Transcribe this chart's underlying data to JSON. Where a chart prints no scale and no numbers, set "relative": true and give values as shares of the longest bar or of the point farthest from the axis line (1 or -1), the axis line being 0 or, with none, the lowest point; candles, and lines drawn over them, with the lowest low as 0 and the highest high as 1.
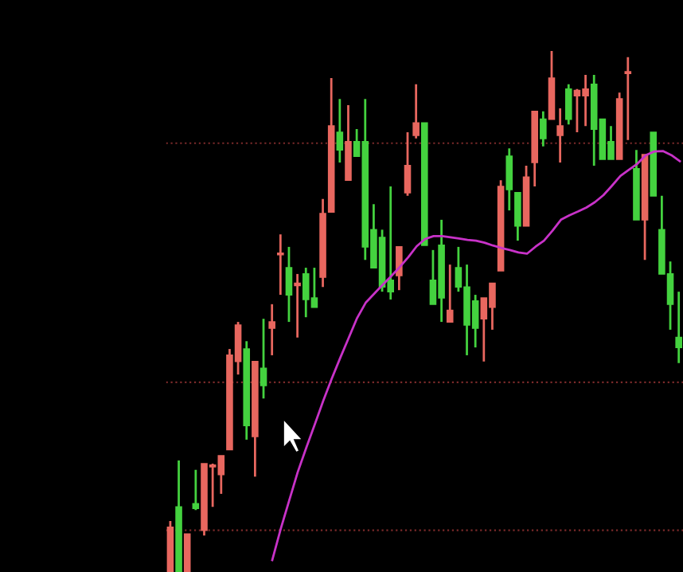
{
  "chart_data": [
    {
      "type": "candlestick",
      "relative": true,
      "categories": [
        null,
        null,
        null,
        null,
        null,
        null,
        null,
        null,
        null,
        null,
        null,
        null,
        null,
        null,
        null,
        null,
        null,
        null,
        null,
        null,
        null,
        null,
        null,
        null,
        null,
        null,
        null,
        null,
        null,
        null,
        null,
        null,
        null,
        null,
        null,
        null,
        null,
        null,
        null,
        null,
        null,
        null,
        null,
        null,
        null,
        null,
        null,
        null,
        null,
        null,
        null,
        null,
        null,
        null,
        null,
        null,
        null,
        null,
        null,
        null,
        null
      ],
      "ohlc": [
        [
          0,
          0.098,
          0,
          0.086
        ],
        [
          0.125,
          0.214,
          0,
          0
        ],
        [
          0,
          0.073,
          0,
          0.073
        ],
        [
          0.131,
          0.196,
          0.119,
          0.122
        ],
        [
          0.08,
          0.208,
          0.07,
          0.208
        ],
        [
          0.202,
          0.208,
          0.125,
          0.205
        ],
        [
          0.187,
          0.223,
          0.15,
          0.223
        ],
        [
          0.235,
          0.428,
          0.235,
          0.416
        ],
        [
          0.404,
          0.48,
          0.379,
          0.474
        ],
        [
          0.428,
          0.443,
          0.254,
          0.281
        ],
        [
          0.26,
          0.404,
          0.183,
          0.404
        ],
        [
          0.391,
          0.486,
          0.333,
          0.358
        ],
        [
          0.468,
          0.514,
          0.416,
          0.48
        ],
        [
          0.609,
          0.648,
          0.532,
          0.612
        ],
        [
          0.584,
          0.624,
          0.48,
          0.532
        ],
        [
          0.55,
          0.572,
          0.45,
          0.554
        ],
        [
          0.572,
          0.584,
          0.489,
          0.523
        ],
        [
          0.526,
          0.584,
          0.508,
          0.508
        ],
        [
          0.566,
          0.716,
          0.547,
          0.688
        ],
        [
          0.691,
          0.948,
          0.691,
          0.856
        ],
        [
          0.844,
          0.908,
          0.786,
          0.81
        ],
        [
          0.752,
          0.896,
          0.752,
          0.826
        ],
        [
          0.826,
          0.85,
          0.798,
          0.798
        ],
        [
          0.826,
          0.908,
          0.599,
          0.624
        ],
        [
          0.657,
          0.706,
          0.584,
          0.584
        ],
        [
          0.642,
          0.657,
          0.538,
          0.547
        ],
        [
          0.56,
          0.74,
          0.523,
          0.538
        ],
        [
          0.569,
          0.624,
          0.541,
          0.624
        ],
        [
          0.728,
          0.844,
          0.722,
          0.78
        ],
        [
          0.838,
          0.936,
          0.832,
          0.862
        ],
        [
          0.862,
          0.862,
          0.627,
          0.627
        ],
        [
          0.56,
          0.618,
          0.514,
          0.514
        ],
        [
          0.627,
          0.676,
          0.48,
          0.526
        ],
        [
          0.48,
          0.59,
          0.48,
          0.502
        ],
        [
          0.584,
          0.624,
          0.538,
          0.547
        ],
        [
          0.547,
          0.59,
          0.416,
          0.474
        ],
        [
          0.52,
          0.532,
          0.431,
          0.468
        ],
        [
          0.486,
          0.526,
          0.404,
          0.526
        ],
        [
          0.508,
          0.554,
          0.465,
          0.554
        ],
        [
          0.578,
          0.752,
          0.578,
          0.74
        ],
        [
          0.798,
          0.813,
          0.694,
          0.734
        ],
        [
          0.728,
          0.728,
          0.636,
          0.664
        ],
        [
          0.664,
          0.78,
          0.664,
          0.758
        ],
        [
          0.786,
          0.884,
          0.74,
          0.884
        ],
        [
          0.869,
          0.884,
          0.817,
          0.832
        ],
        [
          0.869,
          1,
          0.869,
          0.948
        ],
        [
          0.838,
          0.89,
          0.786,
          0.856
        ],
        [
          0.927,
          0.936,
          0.859,
          0.869
        ],
        [
          0.914,
          0.927,
          0.844,
          0.924
        ],
        [
          0.914,
          0.954,
          0.856,
          0.927
        ],
        [
          0.936,
          0.954,
          0.78,
          0.85
        ],
        [
          0.869,
          0.869,
          0.792,
          0.792
        ],
        [
          0.826,
          0.856,
          0.792,
          0.792
        ],
        [
          0.792,
          0.92,
          0.792,
          0.908
        ],
        [
          0.957,
          0.988,
          0.829,
          0.96
        ],
        [
          0.774,
          0.81,
          0.676,
          0.676
        ],
        [
          0.676,
          0.801,
          0.599,
          0.801
        ],
        [
          0.844,
          0.844,
          0.722,
          0.722
        ],
        [
          0.657,
          0.722,
          0.572,
          0.572
        ],
        [
          0.572,
          0.596,
          0.465,
          0.514
        ],
        [
          0.45,
          0.538,
          0.401,
          0.431
        ]
      ],
      "colors": [
        "#e8675f",
        "#44d23f",
        "#e8675f",
        "#44d23f",
        "#e8675f",
        "#e8675f",
        "#e8675f",
        "#e8675f",
        "#e8675f",
        "#44d23f",
        "#e8675f",
        "#44d23f",
        "#e8675f",
        "#e8675f",
        "#44d23f",
        "#e8675f",
        "#44d23f",
        "#44d23f",
        "#e8675f",
        "#e8675f",
        "#44d23f",
        "#e8675f",
        "#44d23f",
        "#44d23f",
        "#44d23f",
        "#44d23f",
        "#44d23f",
        "#e8675f",
        "#e8675f",
        "#e8675f",
        "#44d23f",
        "#44d23f",
        "#44d23f",
        "#e8675f",
        "#44d23f",
        "#44d23f",
        "#44d23f",
        "#e8675f",
        "#e8675f",
        "#e8675f",
        "#44d23f",
        "#44d23f",
        "#e8675f",
        "#e8675f",
        "#44d23f",
        "#e8675f",
        "#e8675f",
        "#44d23f",
        "#e8675f",
        "#e8675f",
        "#44d23f",
        "#44d23f",
        "#44d23f",
        "#e8675f",
        "#e8675f",
        "#44d23f",
        "#e8675f",
        "#44d23f",
        "#44d23f",
        "#44d23f",
        "#44d23f"
      ],
      "ref_lines": [
        {
          "axis": "y",
          "value": 0.823,
          "color": "#7a2a2a",
          "line_style": "dotted"
        },
        {
          "axis": "y",
          "value": 0.364,
          "color": "#7a2a2a",
          "line_style": "dotted"
        },
        {
          "axis": "y",
          "value": 0.08,
          "color": "#7a2a2a",
          "line_style": "dotted"
        }
      ]
    },
    {
      "type": "line",
      "relative": true,
      "categories": [
        null,
        null,
        null,
        null,
        null,
        null,
        null,
        null,
        null,
        null,
        null,
        null,
        null,
        null,
        null,
        null,
        null,
        null,
        null,
        null,
        null,
        null,
        null,
        null,
        null,
        null,
        null,
        null,
        null,
        null,
        null,
        null,
        null,
        null,
        null,
        null,
        null,
        null,
        null,
        null,
        null,
        null,
        null,
        null,
        null,
        null,
        null,
        null,
        null
      ],
      "series": [
        {
          "color": "#c832c8",
          "values": [
            0,
            0.076,
            0.146,
            0.215,
            0.274,
            0.331,
            0.389,
            0.443,
            0.494,
            0.543,
            0.592,
            0.629,
            0.651,
            0.673,
            0.694,
            0.716,
            0.74,
            0.767,
            0.785,
            0.792,
            0.792,
            0.789,
            0.786,
            0.783,
            0.781,
            0.776,
            0.769,
            0.763,
            0.758,
            0.752,
            0.749,
            0.766,
            0.781,
            0.805,
            0.832,
            0.843,
            0.852,
            0.862,
            0.875,
            0.892,
            0.915,
            0.939,
            0.954,
            0.969,
            0.99,
            0.999,
            1,
            0.99,
            0.975
          ]
        }
      ]
    }
  ]
}
